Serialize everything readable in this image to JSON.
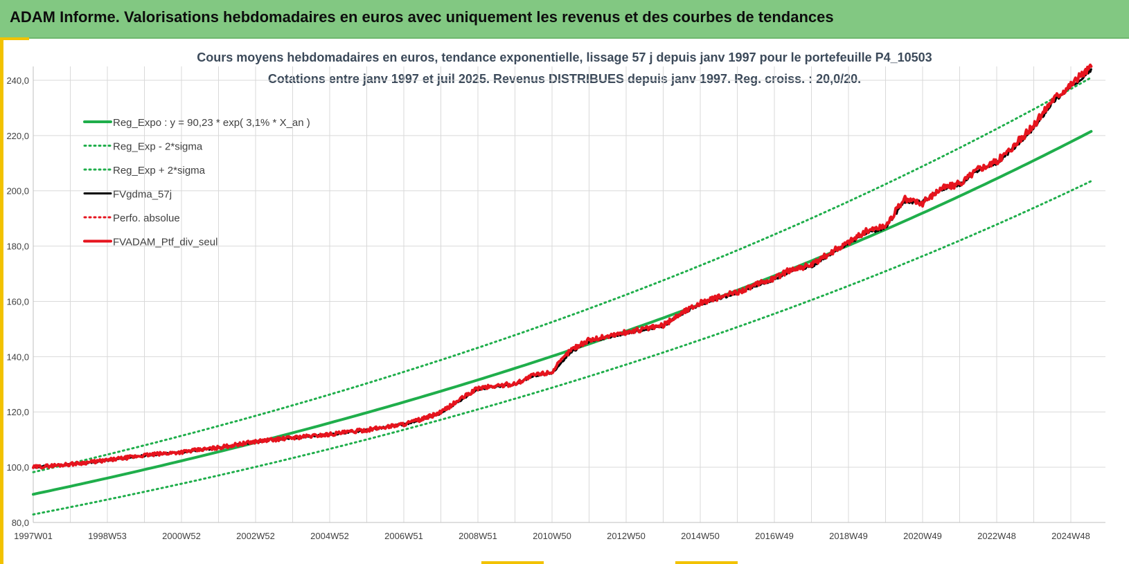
{
  "banner": {
    "title": "ADAM Informe. Valorisations hebdomadaires en euros avec uniquement les revenus et des courbes de tendances"
  },
  "colors": {
    "banner_bg": "#82c882",
    "accent": "#f2c200",
    "trend": "#1fae4b",
    "smoothed": "#000000",
    "perf": "#e6141e",
    "grid": "#d9d9d9",
    "title_text": "#3c4a5a"
  },
  "chart_data": {
    "type": "line",
    "title": "Cours moyens hebdomadaires  en euros, tendance exponentielle, lissage 57 j depuis janv 1997 pour le portefeuille P4_10503",
    "subtitle": "Cotations  entre janv 1997 et juil 2025. Revenus DISTRIBUES depuis janv 1997. Reg. croiss. : 20,0/20.",
    "xlabel": "",
    "ylabel": "",
    "x_range": [
      1997.0,
      2025.55
    ],
    "ylim": [
      80,
      245
    ],
    "y_ticks": [
      80,
      100,
      120,
      140,
      160,
      180,
      200,
      220,
      240
    ],
    "y_tick_labels": [
      "80,0",
      "100,0",
      "120,0",
      "140,0",
      "160,0",
      "180,0",
      "200,0",
      "220,0",
      "240,0"
    ],
    "x_ticks": [
      1997.0,
      1999.0,
      2001.0,
      2003.0,
      2005.0,
      2007.0,
      2009.0,
      2011.0,
      2013.0,
      2015.0,
      2017.0,
      2019.0,
      2021.0,
      2023.0,
      2025.0
    ],
    "x_tick_labels": [
      "1997W01",
      "1998W53",
      "2000W52",
      "2002W52",
      "2004W52",
      "2006W51",
      "2008W51",
      "2010W50",
      "2012W50",
      "2014W50",
      "2016W49",
      "2018W49",
      "2020W49",
      "2022W48",
      "2024W48"
    ],
    "grid": true,
    "legend_placement": "top-left",
    "series": [
      {
        "name": "Reg_Expo : y = 90,23 * exp( 3,1% *  X_an )",
        "style": "solid-green",
        "x": [
          1997,
          1999,
          2001,
          2003,
          2005,
          2007,
          2009,
          2011,
          2013,
          2015,
          2017,
          2019,
          2021,
          2023,
          2025.55
        ],
        "values": [
          90.2,
          95.8,
          101.9,
          108.4,
          115.3,
          122.6,
          130.4,
          138.7,
          147.6,
          157.0,
          167.0,
          177.7,
          189.0,
          201.1,
          221.5
        ]
      },
      {
        "name": "Reg_Exp - 2*sigma",
        "style": "dotted-green",
        "x": [
          1997,
          1999,
          2001,
          2003,
          2005,
          2007,
          2009,
          2011,
          2013,
          2015,
          2017,
          2019,
          2021,
          2023,
          2025.55
        ],
        "values": [
          82.9,
          88.0,
          93.6,
          99.6,
          105.9,
          112.6,
          119.8,
          127.4,
          135.5,
          144.2,
          153.4,
          163.2,
          173.6,
          184.7,
          203.5
        ]
      },
      {
        "name": "Reg_Exp + 2*sigma",
        "style": "dotted-green",
        "x": [
          1997,
          1999,
          2001,
          2003,
          2005,
          2007,
          2009,
          2011,
          2013,
          2015,
          2017,
          2019,
          2021,
          2023,
          2025.55
        ],
        "values": [
          98.2,
          104.3,
          110.9,
          118.0,
          125.5,
          133.5,
          142.0,
          151.0,
          160.7,
          170.9,
          181.8,
          193.4,
          205.7,
          218.8,
          241.0
        ]
      },
      {
        "name": "FVgdma_57j",
        "style": "solid-black",
        "x": [
          1997,
          1998,
          1999,
          2000,
          2001,
          2002,
          2003,
          2004,
          2005,
          2006,
          2007,
          2007.5,
          2008,
          2008.5,
          2009,
          2010,
          2010.5,
          2011,
          2011.5,
          2012,
          2013,
          2014,
          2014.5,
          2015,
          2016,
          2017,
          2017.5,
          2018,
          2018.5,
          2019,
          2019.5,
          2020,
          2020.5,
          2021,
          2021.5,
          2022,
          2022.5,
          2023,
          2023.5,
          2024,
          2024.5,
          2025,
          2025.55
        ],
        "values": [
          100.0,
          101.0,
          102.4,
          104.2,
          105.4,
          107.0,
          109.2,
          110.6,
          111.8,
          113.4,
          115.5,
          117.2,
          119.5,
          124.0,
          128.2,
          130.0,
          133.0,
          134.0,
          141.5,
          145.5,
          148.5,
          151.0,
          155.5,
          159.0,
          163.0,
          168.0,
          171.5,
          172.5,
          177.0,
          181.0,
          185.0,
          186.5,
          196.0,
          196.0,
          200.5,
          202.0,
          207.5,
          210.0,
          216.0,
          222.5,
          232.0,
          237.5,
          244.0
        ]
      },
      {
        "name": "Perfo. absolue",
        "style": "dotted-red",
        "x": [
          1997,
          1998,
          1999,
          2000,
          2001,
          2002,
          2003,
          2004,
          2005,
          2006,
          2007,
          2007.5,
          2008,
          2008.5,
          2009,
          2010,
          2010.5,
          2011,
          2011.5,
          2012,
          2013,
          2014,
          2014.5,
          2015,
          2016,
          2017,
          2017.5,
          2018,
          2018.5,
          2019,
          2019.5,
          2020,
          2020.5,
          2021,
          2021.5,
          2022,
          2022.5,
          2023,
          2023.5,
          2024,
          2024.5,
          2025,
          2025.55
        ],
        "values": [
          100.0,
          101.1,
          102.5,
          104.3,
          105.5,
          107.1,
          109.3,
          110.7,
          111.9,
          113.5,
          115.6,
          117.4,
          119.8,
          124.4,
          128.6,
          130.2,
          133.3,
          134.5,
          142.5,
          146.0,
          148.8,
          151.3,
          155.9,
          159.5,
          163.4,
          168.4,
          171.9,
          173.0,
          177.5,
          181.5,
          185.6,
          187.3,
          197.0,
          195.6,
          201.0,
          202.5,
          208.0,
          210.5,
          216.8,
          223.5,
          233.0,
          238.5,
          245.0
        ]
      },
      {
        "name": "FVADAM_Ptf_div_seul",
        "style": "solid-red",
        "x": [
          1997,
          1998,
          1999,
          2000,
          2001,
          2002,
          2003,
          2004,
          2005,
          2006,
          2007,
          2007.5,
          2008,
          2008.5,
          2009,
          2010,
          2010.5,
          2011,
          2011.5,
          2012,
          2013,
          2014,
          2014.5,
          2015,
          2016,
          2017,
          2017.5,
          2018,
          2018.5,
          2019,
          2019.5,
          2020,
          2020.5,
          2021,
          2021.5,
          2022,
          2022.5,
          2023,
          2023.5,
          2024,
          2024.5,
          2025,
          2025.55
        ],
        "values": [
          100.0,
          101.1,
          102.5,
          104.3,
          105.5,
          107.1,
          109.3,
          110.7,
          111.9,
          113.5,
          115.6,
          117.4,
          119.8,
          124.4,
          128.6,
          130.2,
          133.3,
          134.5,
          142.5,
          146.0,
          148.8,
          151.3,
          155.9,
          159.5,
          163.4,
          168.4,
          171.9,
          173.0,
          177.5,
          181.5,
          185.6,
          187.3,
          197.0,
          195.6,
          201.0,
          202.5,
          208.0,
          210.5,
          216.8,
          223.5,
          233.0,
          238.5,
          245.0
        ]
      }
    ]
  }
}
